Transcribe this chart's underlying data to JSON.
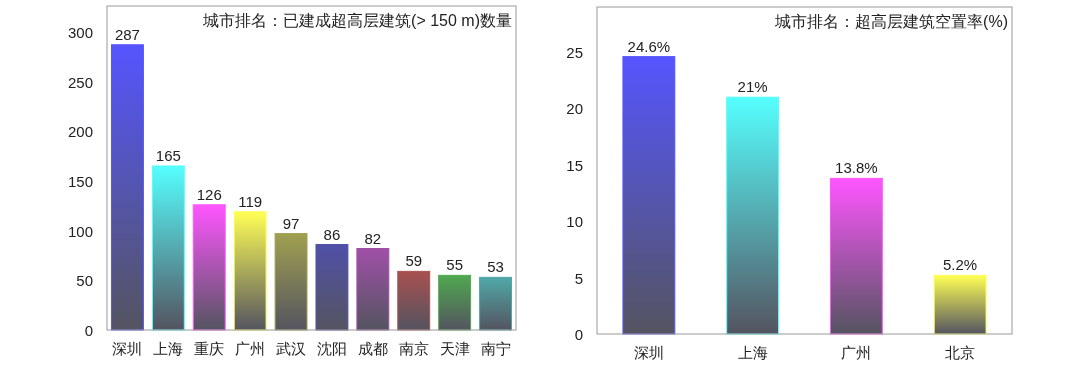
{
  "chart_data": [
    {
      "type": "bar",
      "title": "城市排名：已建成超高层建筑(> 150 m)数量",
      "categories": [
        "深圳",
        "上海",
        "重庆",
        "广州",
        "武汉",
        "沈阳",
        "成都",
        "南京",
        "天津",
        "南宁"
      ],
      "values": [
        287,
        165,
        126,
        119,
        97,
        86,
        82,
        59,
        55,
        53
      ],
      "colors": [
        "#5555ff",
        "#55ffff",
        "#ff55ff",
        "#ffff55",
        "#a0a050",
        "#5050a8",
        "#a050a8",
        "#a85050",
        "#50a850",
        "#50a8a8"
      ],
      "ylim": [
        0,
        326
      ],
      "yticks": [
        0,
        50,
        100,
        150,
        200,
        250,
        300
      ],
      "data_labels": true
    },
    {
      "type": "bar",
      "title": "城市排名：超高层建筑空置率(%)",
      "categories": [
        "深圳",
        "上海",
        "广州",
        "北京"
      ],
      "values": [
        24.6,
        21,
        13.8,
        5.2
      ],
      "colors": [
        "#5555ff",
        "#55ffff",
        "#ff55ff",
        "#ffff55"
      ],
      "value_labels": [
        "24.6%",
        "21%",
        "13.8%",
        "5.2%"
      ],
      "ylim": [
        0,
        29
      ],
      "yticks": [
        0,
        5,
        10,
        15,
        20,
        25
      ]
    }
  ]
}
